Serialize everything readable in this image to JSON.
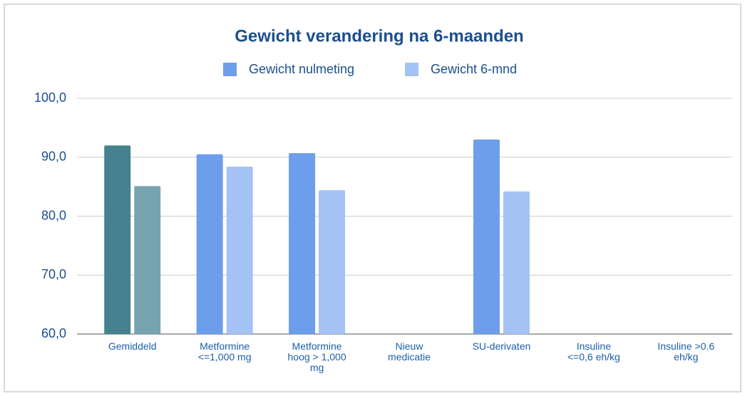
{
  "chart_data": {
    "type": "bar",
    "title": "Gewicht verandering na 6-maanden",
    "categories": [
      "Gemiddeld",
      "Metformine <=1,000 mg",
      "Metformine hoog > 1,000 mg",
      "Nieuw medicatie",
      "SU-derivaten",
      "Insuline <=0,6 eh/kg",
      "Insuline >0.6 eh/kg"
    ],
    "series": [
      {
        "name": "Gewicht nulmeting",
        "color": "#6d9eeb",
        "colors": [
          "#45818e",
          "#6d9eeb",
          "#6d9eeb",
          "#6d9eeb",
          "#6d9eeb",
          "#6d9eeb",
          "#6d9eeb"
        ],
        "values": [
          92.0,
          90.5,
          90.7,
          null,
          93.0,
          null,
          null
        ]
      },
      {
        "name": "Gewicht 6-mnd",
        "color": "#a4c2f4",
        "colors": [
          "#76a5af",
          "#a4c2f4",
          "#a4c2f4",
          "#a4c2f4",
          "#a4c2f4",
          "#a4c2f4",
          "#a4c2f4"
        ],
        "values": [
          85.1,
          88.4,
          84.4,
          null,
          84.2,
          null,
          null
        ]
      }
    ],
    "ylim": [
      60,
      100
    ],
    "yticks": [
      {
        "value": 60,
        "label": "60,0"
      },
      {
        "value": 70,
        "label": "70,0"
      },
      {
        "value": 80,
        "label": "80,0"
      },
      {
        "value": 90,
        "label": "90,0"
      },
      {
        "value": 100,
        "label": "100,0"
      }
    ],
    "grid": true,
    "legend": "top"
  }
}
